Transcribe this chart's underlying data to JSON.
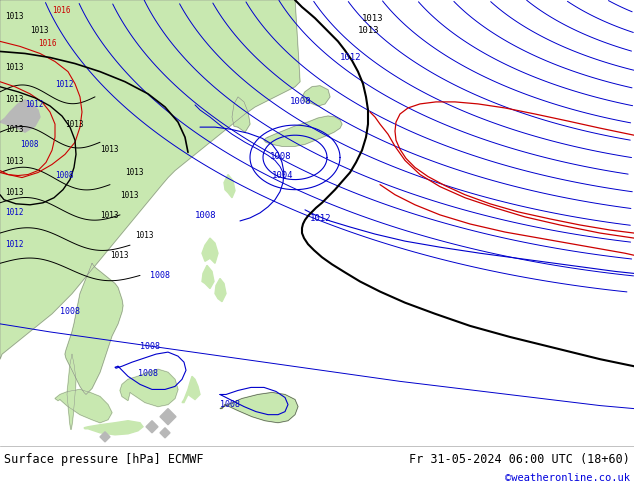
{
  "title_left": "Surface pressure [hPa] ECMWF",
  "title_right": "Fr 31-05-2024 06:00 UTC (18+60)",
  "credit": "©weatheronline.co.uk",
  "ocean_color": "#d8d8e0",
  "land_color": "#c8e8b0",
  "gray_land_color": "#b8b8b8",
  "bottom_bg": "#ffffff",
  "bottom_text_color": "#000000",
  "credit_color": "#0000dd",
  "black_line_color": "#000000",
  "blue_line_color": "#0000cc",
  "red_line_color": "#cc0000"
}
